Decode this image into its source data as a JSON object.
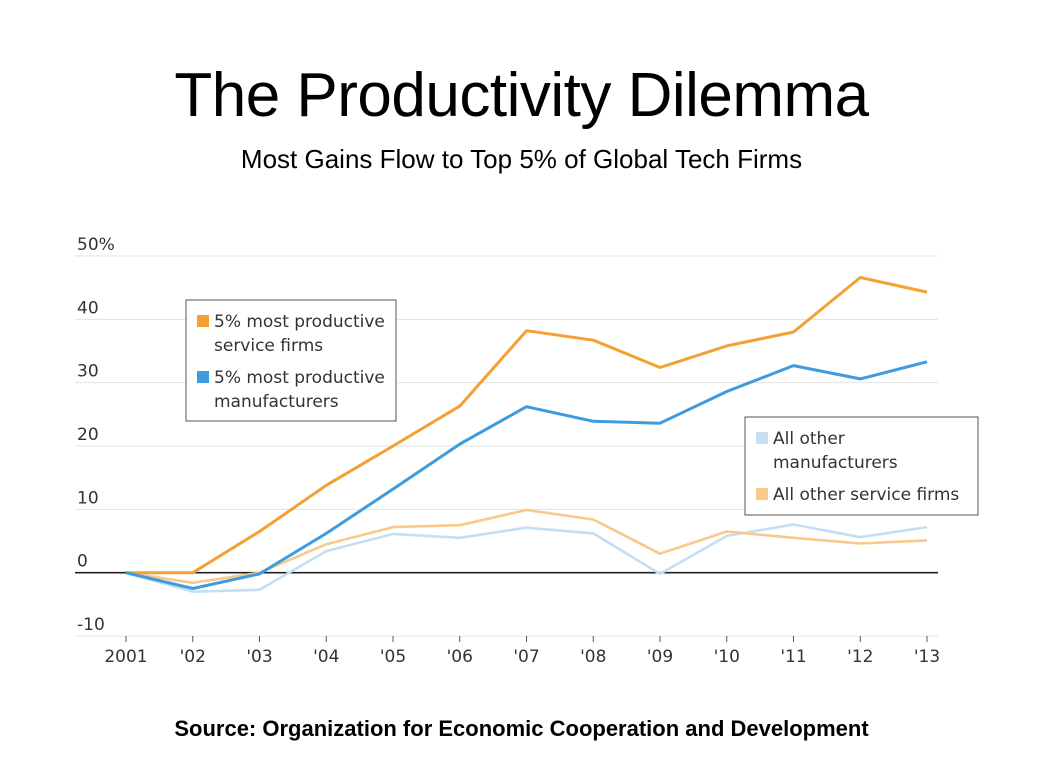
{
  "header": {
    "title": "The Productivity Dilemma",
    "subtitle": "Most Gains Flow to Top 5% of Global Tech Firms"
  },
  "footer": {
    "source": "Source: Organization for Economic Cooperation and Development"
  },
  "chart_data": {
    "type": "line",
    "title": "The Productivity Dilemma",
    "subtitle": "Most Gains Flow to Top 5% of Global Tech Firms",
    "xlabel": "",
    "ylabel": "",
    "categories": [
      "2001",
      "'02",
      "'03",
      "'04",
      "'05",
      "'06",
      "'07",
      "'08",
      "'09",
      "'10",
      "'11",
      "'12",
      "'13"
    ],
    "ylim": [
      -10,
      50
    ],
    "yticks": [
      50,
      40,
      30,
      20,
      10,
      0,
      -10
    ],
    "ytick_labels": [
      "50%",
      "40",
      "30",
      "20",
      "10",
      "0",
      "-10"
    ],
    "grid": true,
    "series": [
      {
        "name": "5% most productive service firms",
        "legend_lines": [
          "5% most productive",
          "service firms"
        ],
        "color": "#f5a033",
        "values": [
          0,
          0,
          6.5,
          13.8,
          20,
          26.3,
          38.2,
          36.7,
          32.4,
          35.8,
          38,
          46.6,
          44.3
        ]
      },
      {
        "name": "5% most productive manufacturers",
        "legend_lines": [
          "5% most productive",
          "manufacturers"
        ],
        "color": "#3d9be0",
        "values": [
          0,
          -2.5,
          -0.2,
          6.2,
          13.2,
          20.3,
          26.2,
          23.9,
          23.6,
          28.6,
          32.7,
          30.6,
          33.3
        ]
      },
      {
        "name": "All other manufacturers",
        "legend_lines": [
          "All other",
          "manufacturers"
        ],
        "color": "#c5def2",
        "values": [
          0,
          -3,
          -2.7,
          3.4,
          6.1,
          5.5,
          7.1,
          6.2,
          -0.2,
          5.8,
          7.6,
          5.6,
          7.2
        ]
      },
      {
        "name": "All other service firms",
        "legend_lines": [
          "All other service firms"
        ],
        "color": "#f7c98a",
        "values": [
          0,
          -1.6,
          0,
          4.5,
          7.2,
          7.5,
          9.9,
          8.4,
          3,
          6.5,
          5.5,
          4.6,
          5.1
        ]
      }
    ],
    "legends": [
      {
        "position": "upper-left",
        "series": [
          0,
          1
        ]
      },
      {
        "position": "right",
        "series": [
          2,
          3
        ]
      }
    ]
  }
}
